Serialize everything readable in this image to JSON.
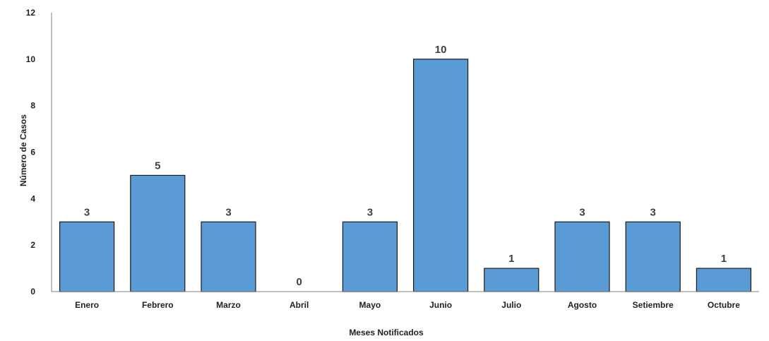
{
  "chart_data": {
    "type": "bar",
    "categories": [
      "Enero",
      "Febrero",
      "Marzo",
      "Abril",
      "Mayo",
      "Junio",
      "Julio",
      "Agosto",
      "Setiembre",
      "Octubre"
    ],
    "values": [
      3,
      5,
      3,
      0,
      3,
      10,
      1,
      3,
      3,
      1
    ],
    "xlabel": "Meses Notificados",
    "ylabel": "Número de Casos",
    "ylim": [
      0,
      12
    ],
    "yticks": [
      0,
      2,
      4,
      6,
      8,
      10,
      12
    ],
    "grid": false,
    "data_labels": true,
    "colors": {
      "bar_fill": "#5b9bd5",
      "bar_stroke": "#1a1a1a",
      "axis": "#7f7f7f"
    }
  }
}
